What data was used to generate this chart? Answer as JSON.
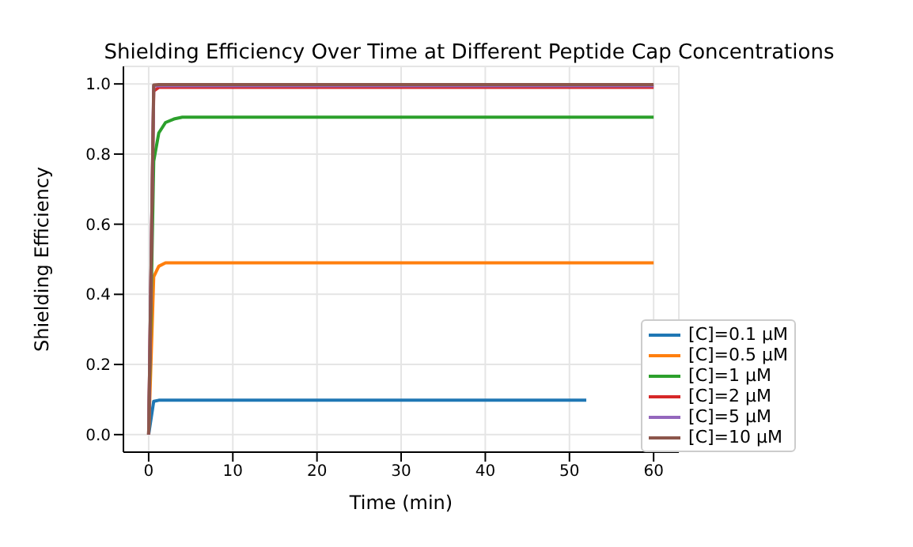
{
  "chart_data": {
    "type": "line",
    "title": "Shielding Efficiency Over Time at Different Peptide Cap Concentrations",
    "xlabel": "Time (min)",
    "ylabel": "Shielding Efficiency",
    "xlim": [
      -3,
      63
    ],
    "xticks": [
      0,
      10,
      20,
      30,
      40,
      50,
      60
    ],
    "ylim": [
      -0.05,
      1.05
    ],
    "yticks": [
      {
        "value": 0,
        "label": "0.0"
      },
      {
        "value": 0.2,
        "label": "0.2"
      },
      {
        "value": 0.4,
        "label": "0.4"
      },
      {
        "value": 0.6,
        "label": "0.6"
      },
      {
        "value": 0.8,
        "label": "0.8"
      },
      {
        "value": 1,
        "label": "1.0"
      }
    ],
    "grid": true,
    "legend": "bottom right",
    "marker": "none",
    "line_style": "solid",
    "x": [
      0,
      0.6,
      1.2,
      2,
      3,
      4,
      5,
      52,
      60
    ],
    "series": [
      {
        "name": "[C]=0.1 μM",
        "color": "#1f77b4",
        "values": [
          0,
          0.095,
          0.098,
          0.098,
          0.098,
          0.098,
          0.098,
          0.098,
          null
        ]
      },
      {
        "name": "[C]=0.5 μM",
        "color": "#ff7f0e",
        "values": [
          0,
          0.45,
          0.48,
          0.49,
          0.49,
          0.49,
          0.49,
          0.49,
          0.49
        ]
      },
      {
        "name": "[C]=1 μM",
        "color": "#2ca02c",
        "values": [
          0,
          0.78,
          0.86,
          0.89,
          0.9,
          0.905,
          0.905,
          0.905,
          0.905
        ]
      },
      {
        "name": "[C]=2 μM",
        "color": "#d62728",
        "values": [
          0,
          0.98,
          0.99,
          0.99,
          0.99,
          0.99,
          0.99,
          0.99,
          0.99
        ]
      },
      {
        "name": "[C]=5 μM",
        "color": "#9467bd",
        "values": [
          0,
          0.995,
          0.995,
          0.995,
          0.995,
          0.995,
          0.995,
          0.995,
          0.995
        ]
      },
      {
        "name": "[C]=10 μM",
        "color": "#8c564b",
        "values": [
          0,
          0.997,
          0.998,
          0.998,
          0.998,
          0.998,
          0.998,
          0.998,
          0.998
        ]
      }
    ]
  }
}
